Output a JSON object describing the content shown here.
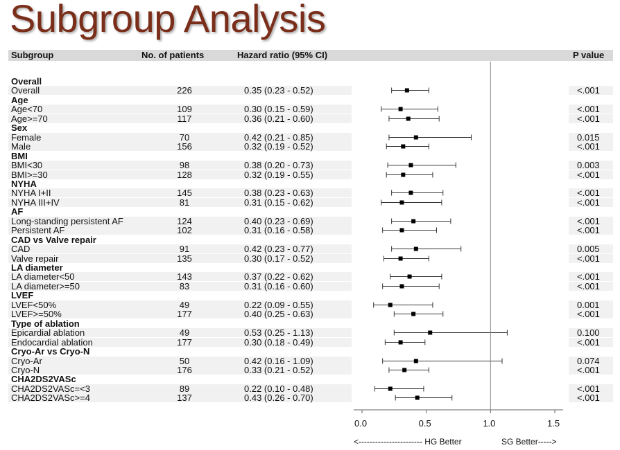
{
  "title": "Subgroup Analysis",
  "header": {
    "subgroup": "Subgroup",
    "patients": "No. of patients",
    "hazard_ratio": "Hazard ratio (95% CI)",
    "p_value": "P value"
  },
  "chart_data": {
    "type": "forest",
    "xlim": [
      0.0,
      1.5
    ],
    "x_ticks": [
      "0.0",
      "0.5",
      "1.0",
      "1.5"
    ],
    "reference_line": 1.0,
    "left_note": "<----------------------- HG Better",
    "right_note": "SG Better----->",
    "groups": [
      {
        "name": "Overall",
        "rows": [
          {
            "label": "Overall",
            "n": "226",
            "hr_text": "0.35 (0.23 - 0.52)",
            "hr": 0.35,
            "lo": 0.23,
            "hi": 0.52,
            "p": "<.001"
          }
        ]
      },
      {
        "name": "Age",
        "rows": [
          {
            "label": "Age<70",
            "n": "109",
            "hr_text": "0.30 (0.15 - 0.59)",
            "hr": 0.3,
            "lo": 0.15,
            "hi": 0.59,
            "p": "<.001"
          },
          {
            "label": "Age>=70",
            "n": "117",
            "hr_text": "0.36 (0.21 - 0.60)",
            "hr": 0.36,
            "lo": 0.21,
            "hi": 0.6,
            "p": "<.001"
          }
        ]
      },
      {
        "name": "Sex",
        "rows": [
          {
            "label": "Female",
            "n": "70",
            "hr_text": "0.42 (0.21 - 0.85)",
            "hr": 0.42,
            "lo": 0.21,
            "hi": 0.85,
            "p": "0.015"
          },
          {
            "label": "Male",
            "n": "156",
            "hr_text": "0.32 (0.19 - 0.52)",
            "hr": 0.32,
            "lo": 0.19,
            "hi": 0.52,
            "p": "<.001"
          }
        ]
      },
      {
        "name": "BMI",
        "rows": [
          {
            "label": "BMI<30",
            "n": "98",
            "hr_text": "0.38 (0.20 - 0.73)",
            "hr": 0.38,
            "lo": 0.2,
            "hi": 0.73,
            "p": "0.003"
          },
          {
            "label": "BMI>=30",
            "n": "128",
            "hr_text": "0.32 (0.19 - 0.55)",
            "hr": 0.32,
            "lo": 0.19,
            "hi": 0.55,
            "p": "<.001"
          }
        ]
      },
      {
        "name": "NYHA",
        "rows": [
          {
            "label": "NYHA I+II",
            "n": "145",
            "hr_text": "0.38 (0.23 - 0.63)",
            "hr": 0.38,
            "lo": 0.23,
            "hi": 0.63,
            "p": "<.001"
          },
          {
            "label": "NYHA III+IV",
            "n": "81",
            "hr_text": "0.31 (0.15 - 0.62)",
            "hr": 0.31,
            "lo": 0.15,
            "hi": 0.62,
            "p": "<.001"
          }
        ]
      },
      {
        "name": "AF",
        "rows": [
          {
            "label": "Long-standing persistent AF",
            "n": "124",
            "hr_text": "0.40 (0.23 - 0.69)",
            "hr": 0.4,
            "lo": 0.23,
            "hi": 0.69,
            "p": "<.001"
          },
          {
            "label": "Persistent AF",
            "n": "102",
            "hr_text": "0.31 (0.16 - 0.58)",
            "hr": 0.31,
            "lo": 0.16,
            "hi": 0.58,
            "p": "<.001"
          }
        ]
      },
      {
        "name": "CAD vs Valve repair",
        "rows": [
          {
            "label": "CAD",
            "n": "91",
            "hr_text": "0.42 (0.23 - 0.77)",
            "hr": 0.42,
            "lo": 0.23,
            "hi": 0.77,
            "p": "0.005"
          },
          {
            "label": "Valve repair",
            "n": "135",
            "hr_text": "0.30 (0.17 - 0.52)",
            "hr": 0.3,
            "lo": 0.17,
            "hi": 0.52,
            "p": "<.001"
          }
        ]
      },
      {
        "name": "LA diameter",
        "rows": [
          {
            "label": "LA diameter<50",
            "n": "143",
            "hr_text": "0.37 (0.22 - 0.62)",
            "hr": 0.37,
            "lo": 0.22,
            "hi": 0.62,
            "p": "<.001"
          },
          {
            "label": "LA diameter>=50",
            "n": "83",
            "hr_text": "0.31 (0.16 - 0.60)",
            "hr": 0.31,
            "lo": 0.16,
            "hi": 0.6,
            "p": "<.001"
          }
        ]
      },
      {
        "name": "LVEF",
        "rows": [
          {
            "label": "LVEF<50%",
            "n": "49",
            "hr_text": "0.22 (0.09 - 0.55)",
            "hr": 0.22,
            "lo": 0.09,
            "hi": 0.55,
            "p": "0.001"
          },
          {
            "label": "LVEF>=50%",
            "n": "177",
            "hr_text": "0.40 (0.25 - 0.63)",
            "hr": 0.4,
            "lo": 0.25,
            "hi": 0.63,
            "p": "<.001"
          }
        ]
      },
      {
        "name": "Type of ablation",
        "rows": [
          {
            "label": "Epicardial ablation",
            "n": "49",
            "hr_text": "0.53 (0.25 - 1.13)",
            "hr": 0.53,
            "lo": 0.25,
            "hi": 1.13,
            "p": "0.100"
          },
          {
            "label": "Endocardial ablation",
            "n": "177",
            "hr_text": "0.30 (0.18 - 0.49)",
            "hr": 0.3,
            "lo": 0.18,
            "hi": 0.49,
            "p": "<.001"
          }
        ]
      },
      {
        "name": "Cryo-Ar vs Cryo-N",
        "rows": [
          {
            "label": "Cryo-Ar",
            "n": "50",
            "hr_text": "0.42 (0.16 - 1.09)",
            "hr": 0.42,
            "lo": 0.16,
            "hi": 1.09,
            "p": "0.074"
          },
          {
            "label": "Cryo-N",
            "n": "176",
            "hr_text": "0.33 (0.21 - 0.52)",
            "hr": 0.33,
            "lo": 0.21,
            "hi": 0.52,
            "p": "<.001"
          }
        ]
      },
      {
        "name": "CHA2DS2VASc",
        "rows": [
          {
            "label": "CHA2DS2VASc=<3",
            "n": "89",
            "hr_text": "0.22 (0.10 - 0.48)",
            "hr": 0.22,
            "lo": 0.1,
            "hi": 0.48,
            "p": "<.001"
          },
          {
            "label": "CHA2DS2VASc>=4",
            "n": "137",
            "hr_text": "0.43 (0.26 - 0.70)",
            "hr": 0.43,
            "lo": 0.26,
            "hi": 0.7,
            "p": "<.001"
          }
        ]
      }
    ]
  }
}
